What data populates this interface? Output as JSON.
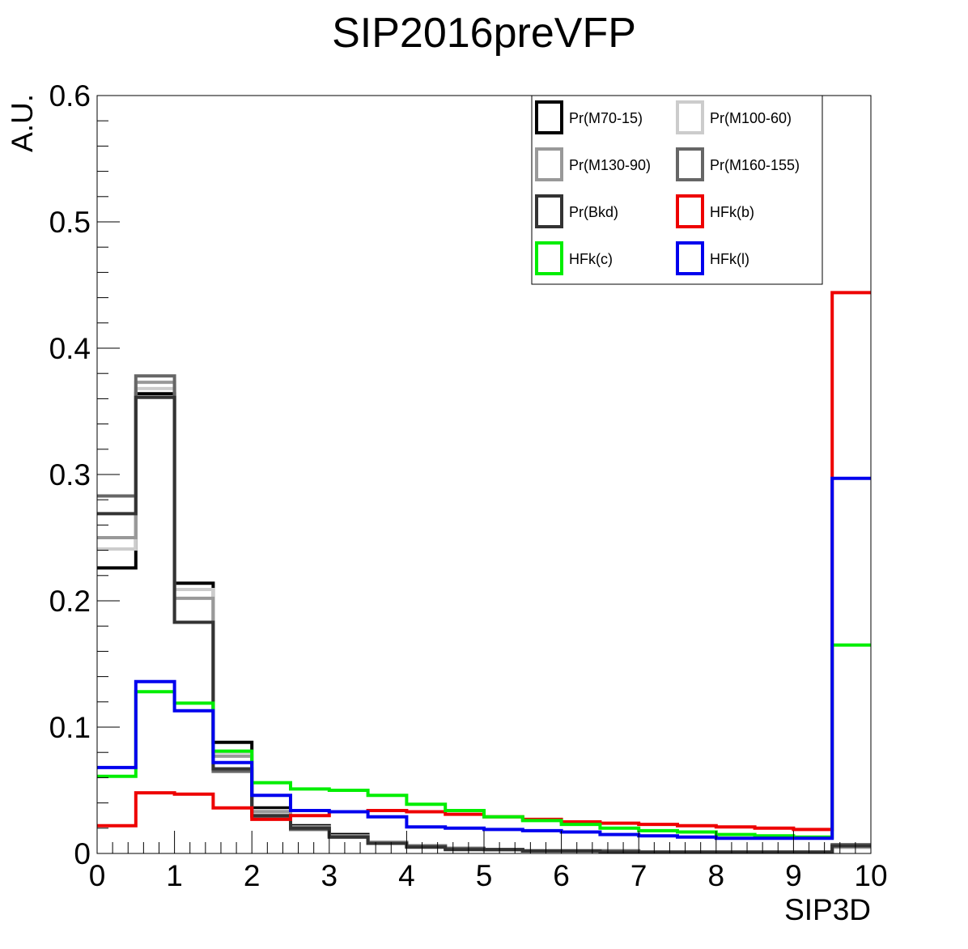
{
  "chart_data": {
    "type": "histogram",
    "title": "SIP2016preVFP",
    "xlabel": "SIP3D",
    "ylabel": "A.U.",
    "xlim": [
      0,
      10
    ],
    "ylim": [
      0,
      0.6
    ],
    "xticks": [
      0,
      1,
      2,
      3,
      4,
      5,
      6,
      7,
      8,
      9,
      10
    ],
    "xtick_labels": [
      "0",
      "1",
      "2",
      "3",
      "4",
      "5",
      "6",
      "7",
      "8",
      "9",
      "10"
    ],
    "yticks": [
      0,
      0.1,
      0.2,
      0.3,
      0.4,
      0.5,
      0.6
    ],
    "ytick_labels": [
      "0",
      "0.1",
      "0.2",
      "0.3",
      "0.4",
      "0.5",
      "0.6"
    ],
    "grid": false,
    "legend_position": "top-right",
    "bin_edges": [
      0,
      0.5,
      1,
      1.5,
      2,
      2.5,
      3,
      3.5,
      4,
      4.5,
      5,
      5.5,
      6,
      6.5,
      7,
      7.5,
      8,
      8.5,
      9,
      9.5,
      10
    ],
    "series": [
      {
        "name": "Pr(M70-15)",
        "color": "#000000",
        "values": [
          0.226,
          0.364,
          0.214,
          0.088,
          0.036,
          0.022,
          0.015,
          0.009,
          0.006,
          0.004,
          0.003,
          0.002,
          0.002,
          0.002,
          0.001,
          0.001,
          0.001,
          0.001,
          0.001,
          0.006
        ]
      },
      {
        "name": "Pr(M100-60)",
        "color": "#cccccc",
        "values": [
          0.241,
          0.368,
          0.209,
          0.08,
          0.034,
          0.021,
          0.014,
          0.009,
          0.006,
          0.004,
          0.003,
          0.002,
          0.002,
          0.002,
          0.001,
          0.001,
          0.001,
          0.001,
          0.001,
          0.005
        ]
      },
      {
        "name": "Pr(M130-90)",
        "color": "#999999",
        "values": [
          0.25,
          0.373,
          0.202,
          0.077,
          0.033,
          0.021,
          0.014,
          0.009,
          0.006,
          0.004,
          0.003,
          0.002,
          0.002,
          0.002,
          0.001,
          0.001,
          0.001,
          0.001,
          0.001,
          0.005
        ]
      },
      {
        "name": "Pr(M160-155)",
        "color": "#666666",
        "values": [
          0.283,
          0.378,
          0.183,
          0.065,
          0.029,
          0.019,
          0.013,
          0.008,
          0.006,
          0.004,
          0.003,
          0.002,
          0.002,
          0.002,
          0.001,
          0.001,
          0.001,
          0.001,
          0.001,
          0.007
        ]
      },
      {
        "name": "Pr(Bkd)",
        "color": "#333333",
        "values": [
          0.269,
          0.361,
          0.183,
          0.067,
          0.03,
          0.02,
          0.013,
          0.008,
          0.005,
          0.003,
          0.003,
          0.002,
          0.002,
          0.001,
          0.001,
          0.001,
          0.001,
          0.001,
          0.001,
          0.006
        ]
      },
      {
        "name": "HFk(b)",
        "color": "#ee0000",
        "values": [
          0.022,
          0.048,
          0.047,
          0.036,
          0.027,
          0.03,
          0.033,
          0.034,
          0.033,
          0.031,
          0.029,
          0.027,
          0.025,
          0.024,
          0.023,
          0.022,
          0.021,
          0.02,
          0.019,
          0.444
        ]
      },
      {
        "name": "HFk(c)",
        "color": "#00ee00",
        "values": [
          0.061,
          0.128,
          0.119,
          0.081,
          0.056,
          0.051,
          0.05,
          0.046,
          0.039,
          0.034,
          0.029,
          0.026,
          0.023,
          0.02,
          0.018,
          0.017,
          0.015,
          0.014,
          0.013,
          0.165
        ]
      },
      {
        "name": "HFk(l)",
        "color": "#0000ee",
        "values": [
          0.068,
          0.136,
          0.113,
          0.072,
          0.046,
          0.034,
          0.033,
          0.029,
          0.021,
          0.02,
          0.019,
          0.018,
          0.017,
          0.015,
          0.014,
          0.013,
          0.012,
          0.012,
          0.012,
          0.297
        ]
      }
    ],
    "legend": {
      "entries": [
        "Pr(M70-15)",
        "Pr(M100-60)",
        "Pr(M130-90)",
        "Pr(M160-155)",
        "Pr(Bkd)",
        "HFk(b)",
        "HFk(c)",
        "HFk(l)"
      ],
      "columns": 2
    }
  }
}
